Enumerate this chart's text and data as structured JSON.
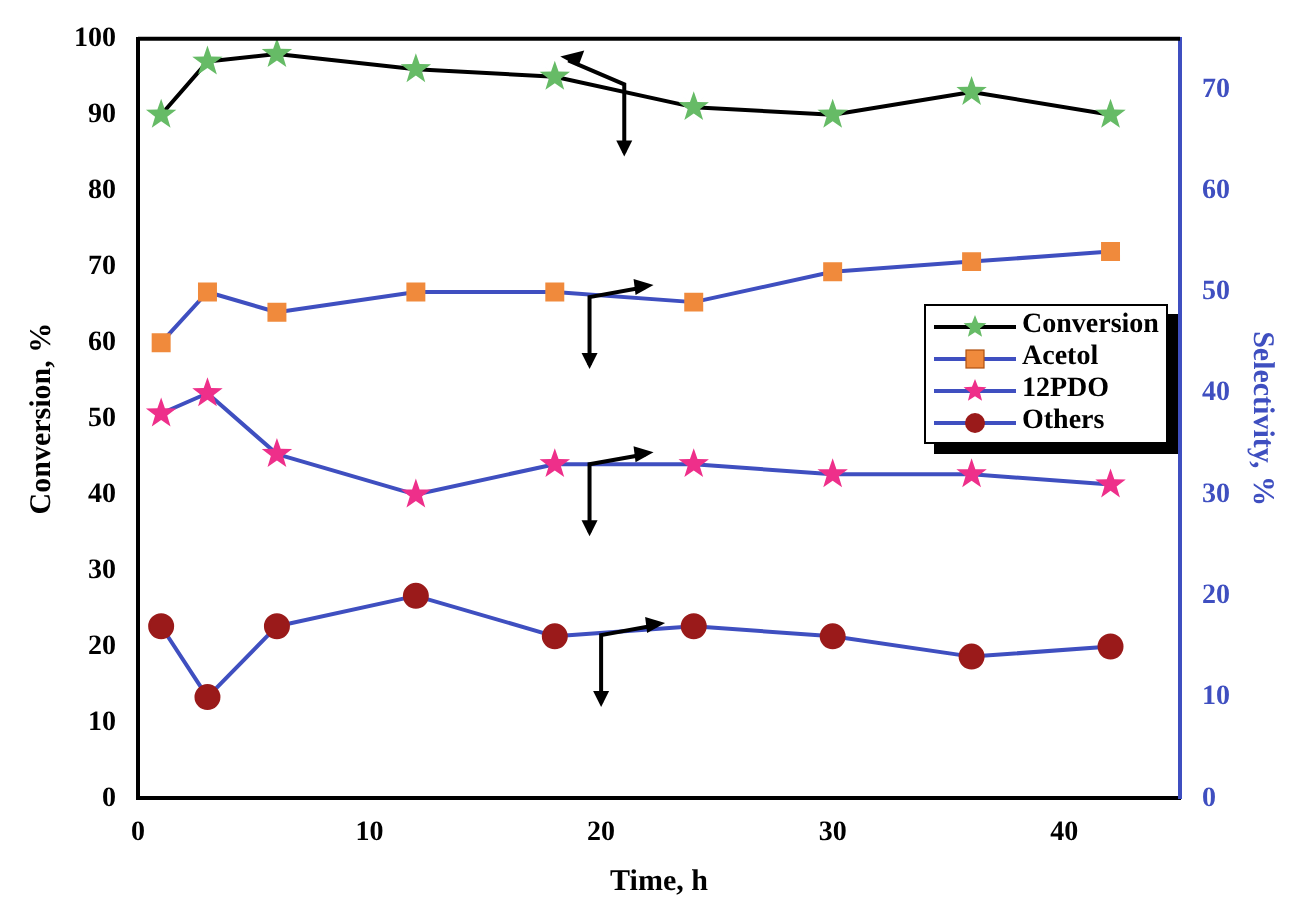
{
  "chart_data": {
    "type": "line",
    "xlabel": "Time, h",
    "ylabel": "Conversion, %",
    "y2label": "Selectivity, %",
    "x": [
      1,
      3,
      6,
      12,
      18,
      24,
      30,
      36,
      42
    ],
    "xlim": [
      0,
      45
    ],
    "xticks": [
      0,
      10,
      20,
      30,
      40
    ],
    "ylim": [
      0,
      100
    ],
    "yticks": [
      0,
      10,
      20,
      30,
      40,
      50,
      60,
      70,
      80,
      90,
      100
    ],
    "y2lim": [
      0,
      75
    ],
    "y2ticks": [
      0,
      10,
      20,
      30,
      40,
      50,
      60,
      70
    ],
    "legend": "right",
    "grid": false,
    "series": [
      {
        "name": "Conversion",
        "color": "#000000",
        "marker": "star",
        "colors": [
          "#66bb66",
          "#66bb66",
          "#66bb66",
          "#66bb66",
          "#66bb66",
          "#66bb66",
          "#66bb66",
          "#66bb66",
          "#66bb66"
        ],
        "values": [
          90,
          97,
          98,
          96,
          95,
          91,
          90,
          93,
          90
        ]
      },
      {
        "name": "Acetol",
        "color": "#3f4fc0",
        "marker": "square",
        "axis": "y2",
        "colors": [
          "#f08a3c",
          "#f08a3c",
          "#f08a3c",
          "#f08a3c",
          "#f08a3c",
          "#f08a3c",
          "#f08a3c",
          "#f08a3c",
          "#f08a3c"
        ],
        "values": [
          45,
          50,
          48,
          50,
          50,
          49,
          52,
          53,
          54
        ]
      },
      {
        "name": "12PDO",
        "color": "#3f4fc0",
        "marker": "star",
        "axis": "y2",
        "colors": [
          "#ee2f8a",
          "#ee2f8a",
          "#ee2f8a",
          "#ee2f8a",
          "#ee2f8a",
          "#ee2f8a",
          "#ee2f8a",
          "#ee2f8a",
          "#ee2f8a"
        ],
        "values": [
          38,
          40,
          34,
          30,
          33,
          33,
          32,
          32,
          31
        ]
      },
      {
        "name": "Others",
        "color": "#3f4fc0",
        "marker": "circle",
        "axis": "y2",
        "colors": [
          "#9a1a1a",
          "#9a1a1a",
          "#9a1a1a",
          "#9a1a1a",
          "#9a1a1a",
          "#9a1a1a",
          "#9a1a1a",
          "#9a1a1a",
          "#9a1a1a"
        ],
        "values": [
          17,
          10,
          17,
          20,
          16,
          17,
          16,
          14,
          15
        ]
      }
    ]
  }
}
